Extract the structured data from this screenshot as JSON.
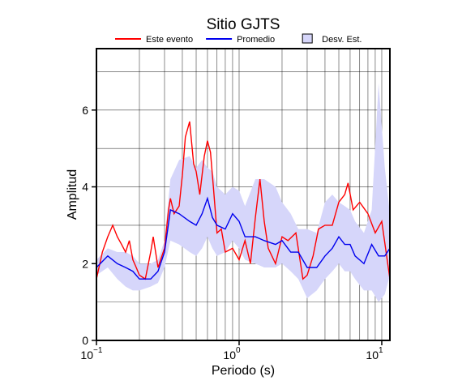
{
  "chart_data": {
    "type": "line",
    "title": "Sitio GJTS",
    "x_label": "Periodo (s)",
    "y_label": "Amplitud",
    "log_x": true,
    "grid": true,
    "xlim": [
      0.1,
      11.4
    ],
    "ylim": [
      0,
      7.6
    ],
    "xticks": [
      {
        "value": 0.1,
        "label": "10",
        "exponent": "−1"
      },
      {
        "value": 1,
        "label": "10",
        "exponent": "0"
      },
      {
        "value": 10,
        "label": "10",
        "exponent": "1"
      }
    ],
    "xgrid": [
      0.2,
      0.3,
      0.4,
      0.5,
      0.6,
      0.7,
      0.8,
      0.9,
      1,
      2,
      3,
      4,
      5,
      6,
      7,
      8,
      9,
      10
    ],
    "yticks": [
      0,
      2,
      4,
      6
    ],
    "ygrid": [
      1,
      2,
      3,
      4,
      5,
      6,
      7
    ],
    "series": [
      {
        "name": "Este evento",
        "color": "#ff0000",
        "x": [
          0.1,
          0.11,
          0.12,
          0.13,
          0.14,
          0.15,
          0.16,
          0.17,
          0.18,
          0.19,
          0.2,
          0.22,
          0.24,
          0.25,
          0.27,
          0.3,
          0.32,
          0.33,
          0.35,
          0.38,
          0.4,
          0.42,
          0.45,
          0.48,
          0.5,
          0.53,
          0.57,
          0.6,
          0.63,
          0.66,
          0.7,
          0.75,
          0.8,
          0.9,
          1.0,
          1.1,
          1.2,
          1.3,
          1.4,
          1.5,
          1.6,
          1.8,
          2.0,
          2.2,
          2.5,
          2.8,
          3.0,
          3.3,
          3.6,
          4.0,
          4.5,
          5.0,
          5.5,
          5.8,
          6.3,
          7.0,
          8.0,
          9.0,
          10,
          11.4
        ],
        "values": [
          1.6,
          2.3,
          2.7,
          3.0,
          2.7,
          2.5,
          2.3,
          2.6,
          2.1,
          1.9,
          1.7,
          1.6,
          2.3,
          2.7,
          1.9,
          2.4,
          3.4,
          3.7,
          3.3,
          3.5,
          4.3,
          5.3,
          5.7,
          4.6,
          4.4,
          3.8,
          4.8,
          5.2,
          4.9,
          4.0,
          2.8,
          2.9,
          2.3,
          2.4,
          2.1,
          2.6,
          2.0,
          3.2,
          4.2,
          3.1,
          2.4,
          2.0,
          2.7,
          2.6,
          2.8,
          1.6,
          1.7,
          2.2,
          2.9,
          3.0,
          3.0,
          3.6,
          3.8,
          4.1,
          3.4,
          3.6,
          3.3,
          2.8,
          3.1,
          1.6
        ]
      },
      {
        "name": "Promedio",
        "color": "#0000ee",
        "x": [
          0.1,
          0.12,
          0.14,
          0.16,
          0.18,
          0.2,
          0.24,
          0.27,
          0.3,
          0.33,
          0.38,
          0.45,
          0.5,
          0.55,
          0.6,
          0.65,
          0.7,
          0.8,
          0.9,
          1.0,
          1.1,
          1.3,
          1.5,
          1.8,
          2.0,
          2.3,
          2.6,
          3.0,
          3.5,
          4.0,
          4.5,
          5.0,
          5.5,
          6.0,
          6.5,
          7.5,
          8.5,
          9.5,
          10.5,
          11.4
        ],
        "values": [
          1.9,
          2.2,
          2.0,
          1.9,
          1.8,
          1.6,
          1.6,
          1.8,
          2.3,
          3.4,
          3.3,
          3.1,
          3.0,
          3.3,
          3.7,
          3.2,
          3.0,
          2.9,
          3.3,
          3.1,
          2.7,
          2.7,
          2.6,
          2.5,
          2.6,
          2.3,
          2.3,
          1.9,
          1.9,
          2.2,
          2.4,
          2.7,
          2.5,
          2.5,
          2.2,
          2.0,
          2.5,
          2.2,
          2.2,
          2.4
        ]
      },
      {
        "name": "Desv. Est.",
        "color": "#d6d6fa",
        "x": [
          0.1,
          0.12,
          0.14,
          0.16,
          0.18,
          0.2,
          0.24,
          0.27,
          0.3,
          0.33,
          0.38,
          0.45,
          0.5,
          0.55,
          0.6,
          0.65,
          0.7,
          0.8,
          0.9,
          1.0,
          1.1,
          1.3,
          1.5,
          1.8,
          2.0,
          2.3,
          2.6,
          3.0,
          3.5,
          4.0,
          4.5,
          5.0,
          5.5,
          6.0,
          6.5,
          7.5,
          8.5,
          9.5,
          10.5,
          11.4
        ],
        "lower": [
          1.7,
          1.9,
          1.6,
          1.4,
          1.3,
          1.3,
          1.4,
          1.5,
          1.9,
          2.6,
          2.5,
          2.3,
          2.2,
          2.4,
          2.7,
          2.4,
          2.2,
          2.3,
          2.6,
          2.4,
          2.1,
          2.0,
          1.9,
          1.9,
          2.0,
          1.8,
          1.6,
          1.1,
          1.3,
          1.6,
          1.8,
          2.0,
          1.8,
          1.8,
          1.6,
          1.3,
          1.3,
          1.0,
          1.2,
          1.7
        ],
        "upper": [
          2.1,
          2.4,
          2.3,
          2.3,
          2.2,
          2.0,
          2.0,
          2.1,
          2.6,
          4.2,
          4.7,
          4.8,
          4.5,
          4.7,
          4.5,
          4.4,
          4.0,
          3.8,
          4.0,
          3.9,
          3.5,
          4.2,
          4.2,
          4.0,
          3.6,
          3.3,
          2.9,
          2.9,
          2.8,
          3.6,
          3.8,
          3.6,
          3.5,
          3.4,
          3.1,
          2.8,
          3.4,
          6.7,
          4.5,
          3.3
        ]
      }
    ]
  }
}
